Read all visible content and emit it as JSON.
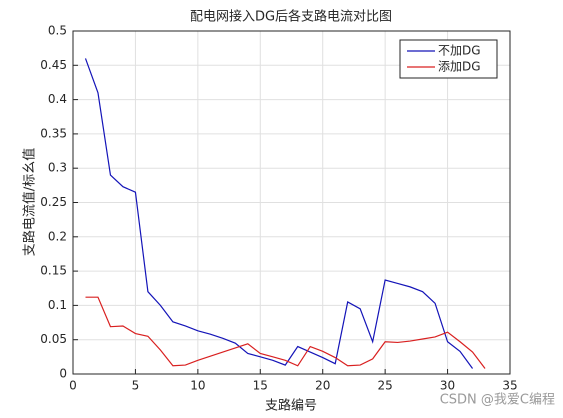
{
  "chart_data": {
    "type": "line",
    "title": "配电网接入DG后各支路电流对比图",
    "xlabel": "支路编号",
    "ylabel": "支路电流值/标幺值",
    "xlim": [
      0,
      35
    ],
    "xticks": [
      0,
      5,
      10,
      15,
      20,
      25,
      30,
      35
    ],
    "ylim": [
      0,
      0.5
    ],
    "yticks": [
      0,
      0.05,
      0.1,
      0.15,
      0.2,
      0.25,
      0.3,
      0.35,
      0.4,
      0.45,
      0.5
    ],
    "grid": true,
    "legend": "top-right",
    "series": [
      {
        "name": "不加DG",
        "color": "#1414b8",
        "x": [
          1,
          2,
          3,
          4,
          5,
          6,
          7,
          8,
          9,
          10,
          11,
          12,
          13,
          14,
          15,
          16,
          17,
          18,
          19,
          20,
          21,
          22,
          23,
          24,
          25,
          26,
          27,
          28,
          29,
          30,
          31,
          32
        ],
        "values": [
          0.46,
          0.41,
          0.29,
          0.273,
          0.265,
          0.12,
          0.1,
          0.076,
          0.07,
          0.063,
          0.058,
          0.052,
          0.045,
          0.03,
          0.025,
          0.02,
          0.013,
          0.04,
          0.032,
          0.024,
          0.015,
          0.105,
          0.095,
          0.047,
          0.137,
          0.132,
          0.127,
          0.12,
          0.103,
          0.047,
          0.033,
          0.008
        ]
      },
      {
        "name": "添加DG",
        "color": "#d92020",
        "x": [
          1,
          2,
          3,
          4,
          5,
          6,
          7,
          8,
          9,
          10,
          11,
          12,
          13,
          14,
          15,
          16,
          17,
          18,
          19,
          20,
          21,
          22,
          23,
          24,
          25,
          26,
          27,
          28,
          29,
          30,
          31,
          32,
          33
        ],
        "values": [
          0.112,
          0.112,
          0.069,
          0.07,
          0.059,
          0.055,
          0.035,
          0.012,
          0.013,
          0.02,
          0.026,
          0.032,
          0.038,
          0.044,
          0.03,
          0.025,
          0.02,
          0.012,
          0.04,
          0.033,
          0.024,
          0.012,
          0.013,
          0.022,
          0.047,
          0.046,
          0.048,
          0.051,
          0.054,
          0.061,
          0.047,
          0.032,
          0.008
        ]
      }
    ]
  },
  "watermark": "CSDN @我爱C编程"
}
